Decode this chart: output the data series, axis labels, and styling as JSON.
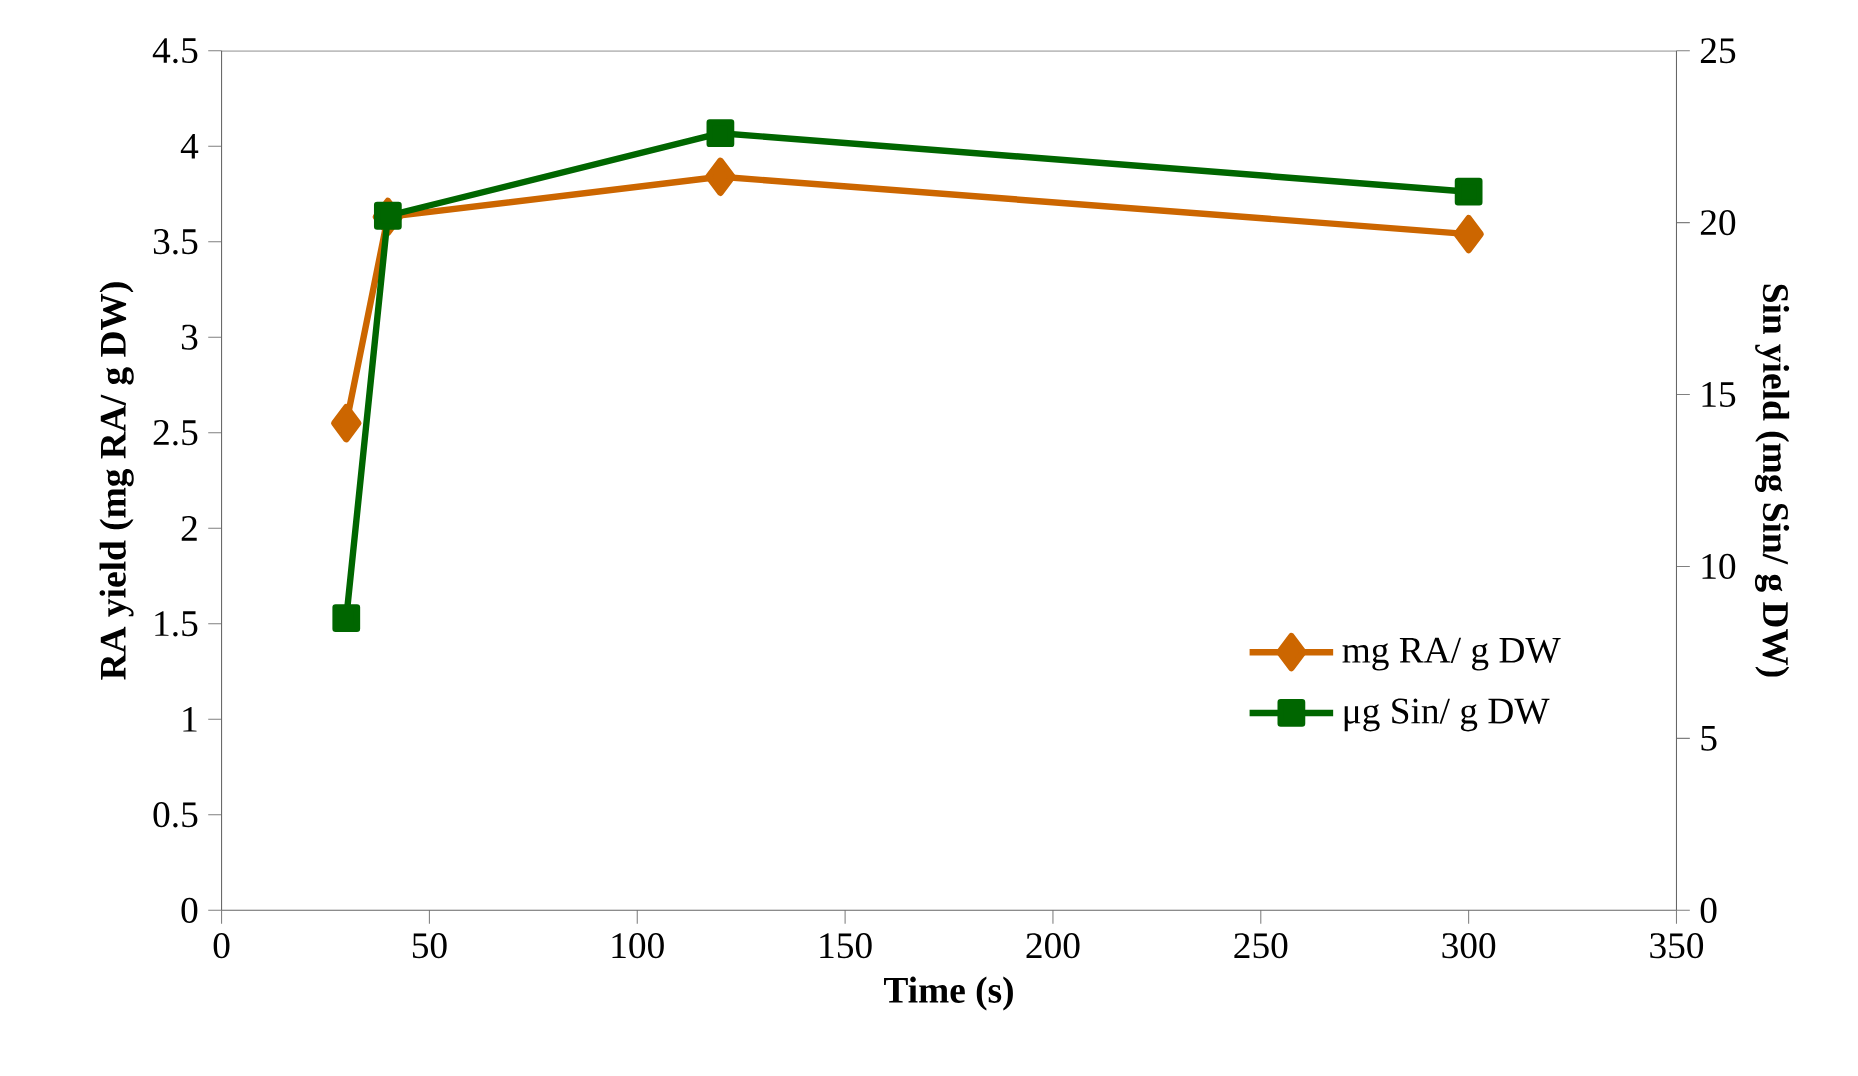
{
  "chart_data": {
    "type": "line",
    "xlabel": "Time (s)",
    "ylabel": "RA yield (mg RA/ g DW)",
    "y2label": "Sin yield (mg Sin/ g DW)",
    "x": [
      30,
      40,
      120,
      300
    ],
    "series": [
      {
        "name": "mg RA/ g DW",
        "color": "#cc6600",
        "marker": "diamond",
        "values": [
          2.55,
          3.63,
          3.84,
          3.54
        ]
      },
      {
        "name": "μg Sin/ g DW",
        "color": "#006600",
        "marker": "square",
        "axis": "y2",
        "values": [
          8.5,
          20.2,
          22.6,
          20.9
        ]
      }
    ],
    "xlim": [
      0,
      350
    ],
    "xticks": [
      0,
      50,
      100,
      150,
      200,
      250,
      300,
      350
    ],
    "ylim": [
      0,
      4.5
    ],
    "yticks": [
      0,
      0.5,
      1,
      1.5,
      2,
      2.5,
      3,
      3.5,
      4,
      4.5
    ],
    "y2lim": [
      0,
      25
    ],
    "y2ticks": [
      0,
      5,
      10,
      15,
      20,
      25
    ],
    "legend": "right",
    "grid": false,
    "line_style": "solid"
  }
}
